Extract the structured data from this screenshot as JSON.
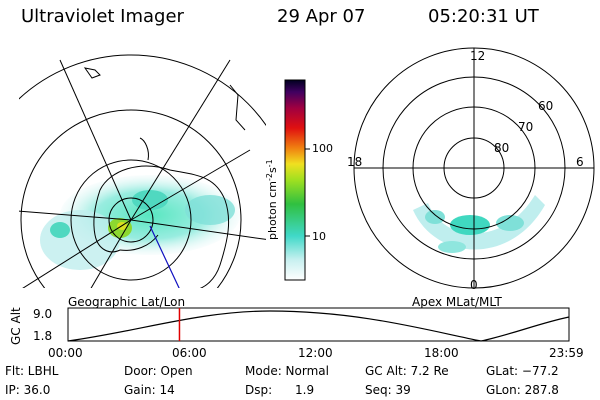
{
  "header": {
    "instrument": "Ultraviolet Imager",
    "date": "29 Apr 07",
    "time": "05:20:31 UT"
  },
  "left_panel": {
    "caption": "Geographic Lat/Lon"
  },
  "right_panel": {
    "caption": "Apex MLat/MLT",
    "mlt_labels": {
      "top": "12",
      "right": "6",
      "bottom": "0",
      "left": "18"
    },
    "lat_labels": [
      "60",
      "70",
      "80"
    ]
  },
  "colorbar": {
    "label": "photon cm",
    "label_sup1": "-2",
    "label_mid": "s",
    "label_sup2": "-1",
    "tick_labels": [
      "100",
      "10"
    ],
    "scale": "log"
  },
  "altitude_plot": {
    "ylabel": "GC Alt",
    "ytick_labels": [
      "9.0",
      "1.8"
    ],
    "xtick_labels": [
      "00:00",
      "06:00",
      "12:00",
      "18:00",
      "23:59"
    ],
    "current_time_hours": 5.34,
    "marker_color": "#e00000"
  },
  "info": {
    "filter": "Flt: LBHL",
    "ip": "IP: 36.0",
    "door": "Door: Open",
    "gain": "Gain: 14",
    "mode": "Mode: Normal",
    "dsp": "Dsp:      1.9",
    "gc_alt": "GC Alt: 7.2 Re",
    "seq": "Seq: 39",
    "glat": "GLat: −77.2",
    "glon": "GLon: 287.8"
  }
}
